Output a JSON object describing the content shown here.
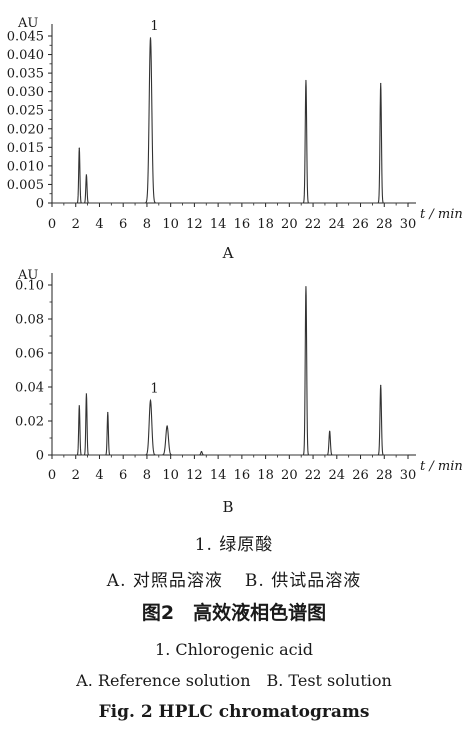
{
  "chart_data": [
    {
      "type": "line",
      "panel_label": "A",
      "ylabel": "AU",
      "xlabel": "t / min",
      "xlim": [
        0,
        30
      ],
      "ylim": [
        0,
        0.045
      ],
      "x_ticks": [
        "0",
        "2",
        "4",
        "6",
        "8",
        "10",
        "12",
        "14",
        "16",
        "18",
        "20",
        "22",
        "24",
        "26",
        "28",
        "30"
      ],
      "y_ticks": [
        "0",
        "0.005",
        "0.010",
        "0.015",
        "0.020",
        "0.025",
        "0.030",
        "0.035",
        "0.040",
        "0.045"
      ],
      "annotations": [
        {
          "text": "1",
          "x": 8.3
        }
      ],
      "series": [
        {
          "peaks": [
            {
              "rt": 2.3,
              "height": 0.0148
            },
            {
              "rt": 2.9,
              "height": 0.0076
            },
            {
              "rt": 8.3,
              "height": 0.0445
            },
            {
              "rt": 21.4,
              "height": 0.033
            },
            {
              "rt": 27.7,
              "height": 0.0322
            }
          ]
        }
      ]
    },
    {
      "type": "line",
      "panel_label": "B",
      "ylabel": "AU",
      "xlabel": "t / min",
      "xlim": [
        0,
        30
      ],
      "ylim": [
        0,
        0.1
      ],
      "x_ticks": [
        "0",
        "2",
        "4",
        "6",
        "8",
        "10",
        "12",
        "14",
        "16",
        "18",
        "20",
        "22",
        "24",
        "26",
        "28",
        "30"
      ],
      "y_ticks": [
        "0",
        "0.02",
        "0.04",
        "0.06",
        "0.08",
        "0.10"
      ],
      "annotations": [
        {
          "text": "1",
          "x": 8.3
        }
      ],
      "series": [
        {
          "peaks": [
            {
              "rt": 2.3,
              "height": 0.029
            },
            {
              "rt": 2.9,
              "height": 0.036
            },
            {
              "rt": 4.7,
              "height": 0.025
            },
            {
              "rt": 8.3,
              "height": 0.032
            },
            {
              "rt": 9.7,
              "height": 0.017
            },
            {
              "rt": 12.6,
              "height": 0.002
            },
            {
              "rt": 21.4,
              "height": 0.099
            },
            {
              "rt": 23.4,
              "height": 0.014
            },
            {
              "rt": 27.7,
              "height": 0.041
            }
          ]
        }
      ]
    }
  ],
  "captions": {
    "zh_item": "1. 绿原酸",
    "zh_legend_a": "A. 对照品溶液",
    "zh_legend_b": "B. 供试品溶液",
    "zh_title": "图2　高效液相色谱图",
    "en_item": "1. Chlorogenic  acid",
    "en_legend_a": "A. Reference  solution",
    "en_legend_b": "B. Test  solution",
    "en_title": "Fig. 2    HPLC  chromatograms"
  }
}
